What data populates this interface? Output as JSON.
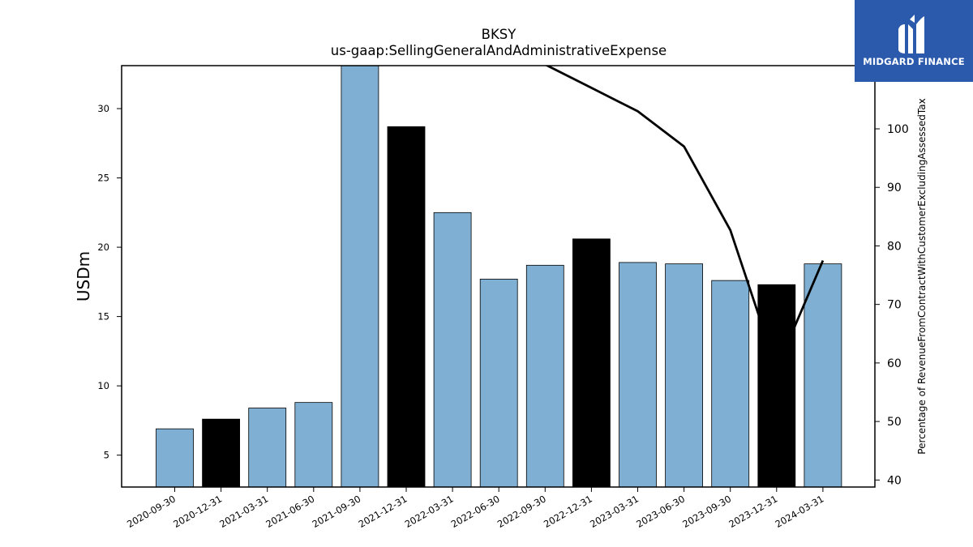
{
  "logo": {
    "text": "MIDGARD FINANCE",
    "background": "#2b5aad",
    "icon": "midgard-finance-logo-icon"
  },
  "chart_data": {
    "type": "bar",
    "title": "BKSY",
    "subtitle": "us-gaap:SellingGeneralAndAdministrativeExpense",
    "ylabel": "USDm",
    "y2label": "Percentage of RevenueFromContractWithCustomerExcludingAssessedTax",
    "ylim": [
      2.7,
      33.1
    ],
    "yticks": [
      5,
      10,
      15,
      20,
      25,
      30
    ],
    "y2lim": [
      38.8,
      110.8
    ],
    "y2ticks": [
      40,
      50,
      60,
      70,
      80,
      90,
      100
    ],
    "categories": [
      "2020-09-30",
      "2020-12-31",
      "2021-03-31",
      "2021-06-30",
      "2021-09-30",
      "2021-12-31",
      "2022-03-31",
      "2022-06-30",
      "2022-09-30",
      "2022-12-31",
      "2023-03-31",
      "2023-06-30",
      "2023-09-30",
      "2023-12-31",
      "2024-03-31"
    ],
    "series": [
      {
        "type": "bar",
        "values": [
          6.9,
          7.6,
          8.4,
          8.8,
          33.5,
          28.7,
          22.5,
          17.7,
          18.7,
          20.6,
          18.9,
          18.8,
          17.6,
          17.3,
          18.8
        ],
        "colors": [
          "#7fb0d3",
          "#000000",
          "#7fb0d3",
          "#7fb0d3",
          "#7fb0d3",
          "#000000",
          "#7fb0d3",
          "#7fb0d3",
          "#7fb0d3",
          "#000000",
          "#7fb0d3",
          "#7fb0d3",
          "#7fb0d3",
          "#000000",
          "#7fb0d3"
        ]
      },
      {
        "type": "line",
        "axis": "right",
        "color": "#000000",
        "values": [
          null,
          null,
          null,
          null,
          null,
          null,
          null,
          null,
          111.0,
          107.0,
          103.0,
          97.0,
          82.7,
          59.0,
          77.5
        ]
      }
    ],
    "grid": false,
    "legend": "none"
  }
}
